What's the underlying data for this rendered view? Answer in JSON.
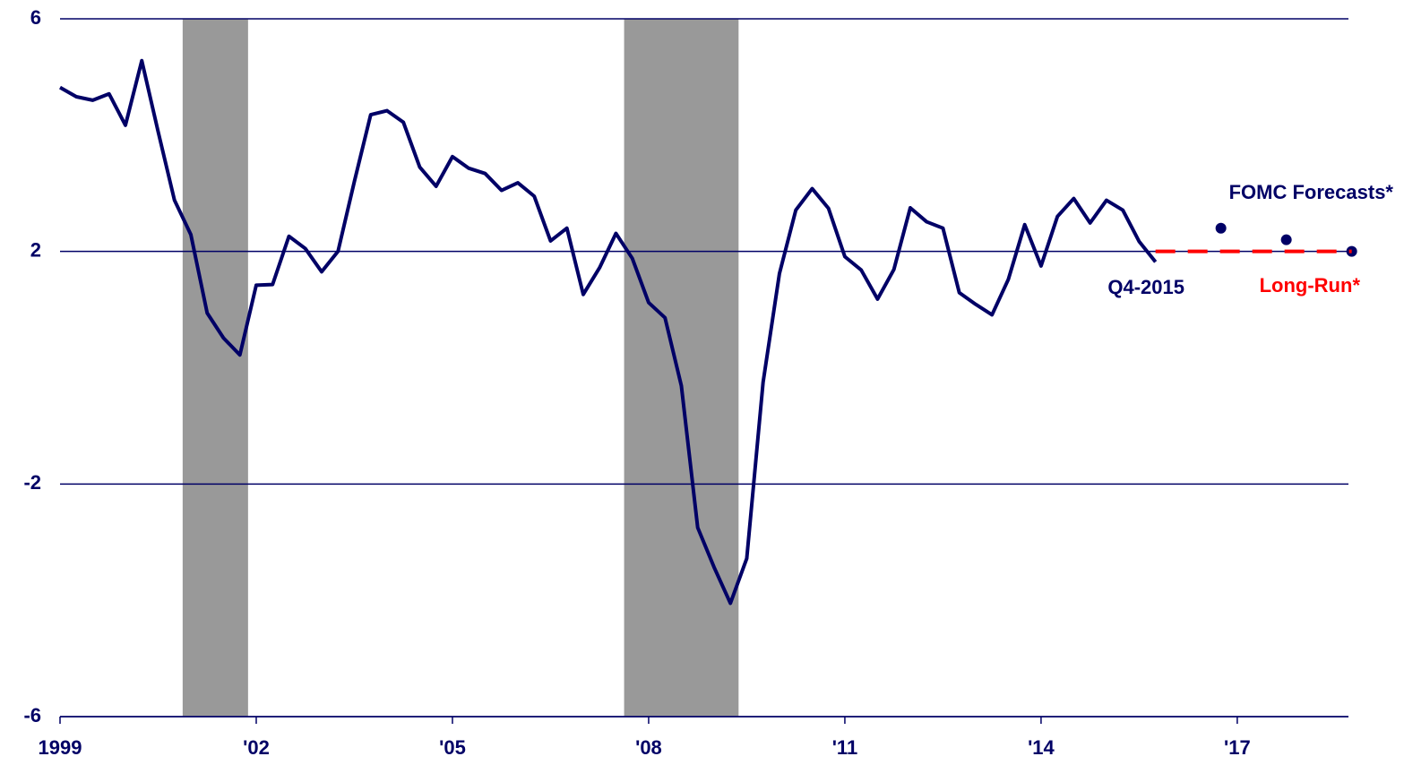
{
  "chart_data": {
    "type": "line",
    "xlim": [
      1999,
      2018.7
    ],
    "ylim": [
      -6,
      6
    ],
    "yticks": [
      6,
      2,
      -2,
      -6
    ],
    "xticks": [
      {
        "value": 1999,
        "label": "1999"
      },
      {
        "value": 2002,
        "label": "'02"
      },
      {
        "value": 2005,
        "label": "'05"
      },
      {
        "value": 2008,
        "label": "'08"
      },
      {
        "value": 2011,
        "label": "'11"
      },
      {
        "value": 2014,
        "label": "'14"
      },
      {
        "value": 2017,
        "label": "'17"
      }
    ],
    "grid": true,
    "shaded_regions": {
      "color": "#999999",
      "ranges": [
        [
          2000.875,
          2001.875
        ],
        [
          2007.625,
          2009.375
        ]
      ]
    },
    "annotation": "Q4-2015",
    "series": [
      {
        "style": "line",
        "color": "#000066",
        "x": [
          1999,
          1999.25,
          1999.5,
          1999.75,
          2000,
          2000.25,
          2000.5,
          2000.75,
          2001,
          2001.25,
          2001.5,
          2001.75,
          2002,
          2002.25,
          2002.5,
          2002.75,
          2003,
          2003.25,
          2003.5,
          2003.75,
          2004,
          2004.25,
          2004.5,
          2004.75,
          2005,
          2005.25,
          2005.5,
          2005.75,
          2006,
          2006.25,
          2006.5,
          2006.75,
          2007,
          2007.25,
          2007.5,
          2007.75,
          2008,
          2008.25,
          2008.5,
          2008.75,
          2009,
          2009.25,
          2009.5,
          2009.75,
          2010,
          2010.25,
          2010.5,
          2010.75,
          2011,
          2011.25,
          2011.5,
          2011.75,
          2012,
          2012.25,
          2012.5,
          2012.75,
          2013,
          2013.25,
          2013.5,
          2013.75,
          2014,
          2014.25,
          2014.5,
          2014.75,
          2015,
          2015.25,
          2015.5,
          2015.75
        ],
        "values": [
          4.82,
          4.66,
          4.6,
          4.71,
          4.17,
          5.28,
          4.06,
          2.88,
          2.29,
          0.94,
          0.51,
          0.22,
          1.42,
          1.43,
          2.26,
          2.05,
          1.65,
          2.0,
          3.2,
          4.35,
          4.42,
          4.22,
          3.45,
          3.12,
          3.63,
          3.43,
          3.34,
          3.05,
          3.18,
          2.95,
          2.18,
          2.4,
          1.26,
          1.72,
          2.31,
          1.88,
          1.12,
          0.86,
          -0.31,
          -2.75,
          -3.43,
          -4.05,
          -3.28,
          -0.25,
          1.62,
          2.71,
          3.08,
          2.74,
          1.91,
          1.68,
          1.18,
          1.69,
          2.75,
          2.51,
          2.4,
          1.29,
          1.09,
          0.91,
          1.52,
          2.46,
          1.75,
          2.6,
          2.91,
          2.49,
          2.88,
          2.71,
          2.17,
          1.82
        ]
      },
      {
        "name": "FOMC Forecasts*",
        "style": "dots",
        "color": "#000066",
        "x": [
          2016.75,
          2017.75,
          2018.75
        ],
        "values": [
          2.4,
          2.2,
          2.0
        ]
      },
      {
        "name": "Long-Run*",
        "style": "dashed",
        "color": "#ff0000",
        "x": [
          2015.75,
          2018.75
        ],
        "values": [
          2,
          2
        ]
      }
    ]
  }
}
